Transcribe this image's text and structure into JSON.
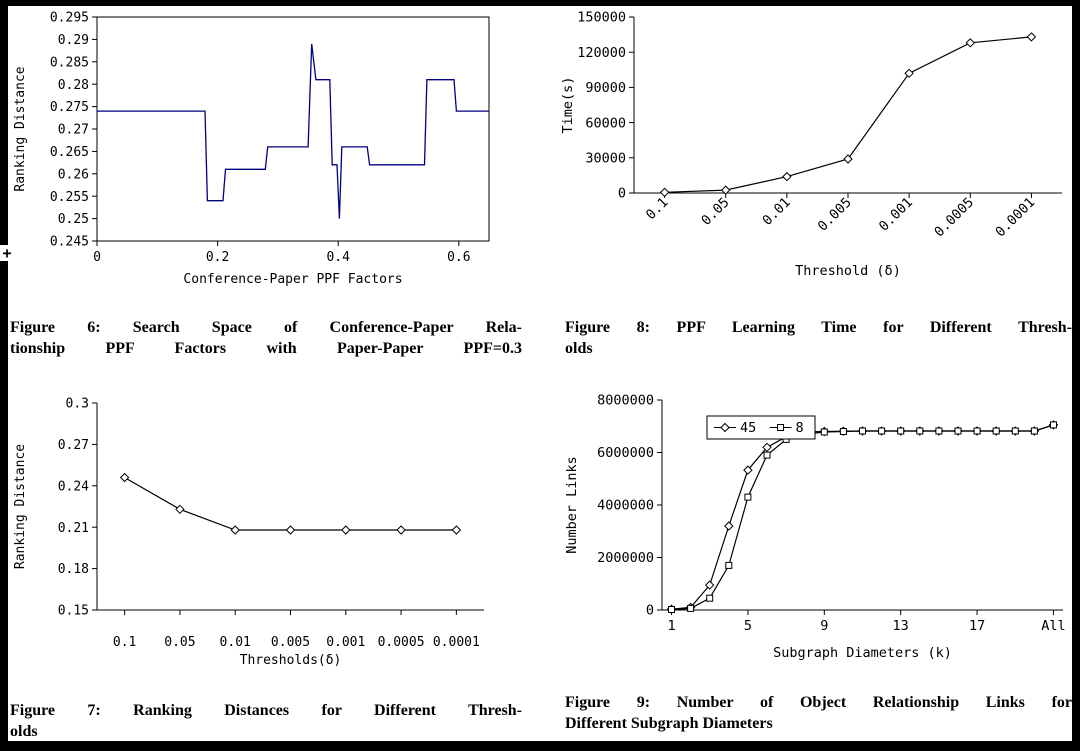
{
  "page": {
    "background": "#ffffff",
    "frame_color": "#000000",
    "cursor_artifact": "+"
  },
  "figures": {
    "fig6": {
      "caption_lines": [
        "Figure 6: Search Space of Conference-Paper Rela-",
        "tionship PPF Factors with Paper-Paper PPF=0.3"
      ]
    },
    "fig8": {
      "caption_lines": [
        "Figure 8: PPF Learning Time for Different Thresh-",
        "olds"
      ]
    },
    "fig7": {
      "caption_lines": [
        "Figure 7: Ranking Distances for Different Thresh-",
        "olds"
      ]
    },
    "fig9": {
      "caption_lines": [
        "Figure 9: Number of Object Relationship Links for",
        "Different Subgraph Diameters"
      ]
    }
  },
  "chart_data": [
    {
      "id": "fig6",
      "type": "line",
      "title": "",
      "xlabel": "Conference-Paper PPF Factors",
      "ylabel": "Ranking Distance",
      "xlim": [
        0,
        0.65
      ],
      "ylim": [
        0.245,
        0.295
      ],
      "xticks": [
        0,
        0.2,
        0.4,
        0.6
      ],
      "xtick_labels": [
        "0",
        "0.2",
        "0.4",
        "0.6"
      ],
      "yticks": [
        0.245,
        0.25,
        0.255,
        0.26,
        0.265,
        0.27,
        0.275,
        0.28,
        0.285,
        0.29,
        0.295
      ],
      "ytick_labels": [
        "0.245",
        "0.25",
        "0.255",
        "0.26",
        "0.265",
        "0.27",
        "0.275",
        "0.28",
        "0.285",
        "0.29",
        "0.295"
      ],
      "grid": false,
      "box": true,
      "line_color": "#000080",
      "points": [
        [
          0,
          0.274
        ],
        [
          0.179,
          0.274
        ],
        [
          0.183,
          0.254
        ],
        [
          0.209,
          0.254
        ],
        [
          0.213,
          0.261
        ],
        [
          0.279,
          0.261
        ],
        [
          0.283,
          0.266
        ],
        [
          0.35,
          0.266
        ],
        [
          0.356,
          0.289
        ],
        [
          0.363,
          0.281
        ],
        [
          0.386,
          0.281
        ],
        [
          0.39,
          0.262
        ],
        [
          0.398,
          0.262
        ],
        [
          0.402,
          0.25
        ],
        [
          0.406,
          0.266
        ],
        [
          0.448,
          0.266
        ],
        [
          0.452,
          0.262
        ],
        [
          0.543,
          0.262
        ],
        [
          0.547,
          0.281
        ],
        [
          0.592,
          0.281
        ],
        [
          0.596,
          0.274
        ],
        [
          0.65,
          0.274
        ]
      ]
    },
    {
      "id": "fig8",
      "type": "line",
      "title": "",
      "xlabel": "Threshold (δ)",
      "ylabel": "Time(s)",
      "categories": [
        "0.1",
        "0.05",
        "0.01",
        "0.005",
        "0.001",
        "0.0005",
        "0.0001"
      ],
      "values": [
        600,
        2500,
        14000,
        29000,
        102000,
        128000,
        133000
      ],
      "ylim": [
        0,
        150000
      ],
      "yticks": [
        0,
        30000,
        60000,
        90000,
        120000,
        150000
      ],
      "ytick_labels": [
        "0",
        "30000",
        "60000",
        "90000",
        "120000",
        "150000"
      ],
      "marker": "diamond",
      "line_color": "#000000",
      "x_label_rotation": -45,
      "grid": false,
      "box": false
    },
    {
      "id": "fig7",
      "type": "line",
      "title": "",
      "xlabel": "Thresholds(δ)",
      "ylabel": "Ranking Distance",
      "categories": [
        "0.1",
        "0.05",
        "0.01",
        "0.005",
        "0.001",
        "0.0005",
        "0.0001"
      ],
      "values": [
        0.246,
        0.223,
        0.208,
        0.208,
        0.208,
        0.208,
        0.208
      ],
      "ylim": [
        0.15,
        0.3
      ],
      "yticks": [
        0.15,
        0.18,
        0.21,
        0.24,
        0.27,
        0.3
      ],
      "ytick_labels": [
        "0.15",
        "0.18",
        "0.21",
        "0.24",
        "0.27",
        "0.3"
      ],
      "marker": "diamond",
      "line_color": "#000000",
      "grid": false,
      "box": false
    },
    {
      "id": "fig9",
      "type": "line",
      "title": "",
      "xlabel": "Subgraph Diameters (k)",
      "ylabel": "Number Links",
      "categories": [
        "1",
        "2",
        "3",
        "4",
        "5",
        "6",
        "7",
        "8",
        "9",
        "10",
        "11",
        "12",
        "13",
        "14",
        "15",
        "16",
        "17",
        "18",
        "19",
        "20",
        "All"
      ],
      "xtick_positions": [
        0,
        4,
        8,
        12,
        16,
        20
      ],
      "xtick_labels": [
        "1",
        "5",
        "9",
        "13",
        "17",
        "All"
      ],
      "series": [
        {
          "name": "45",
          "marker": "diamond",
          "values": [
            30000,
            100000,
            950000,
            3200000,
            5330000,
            6200000,
            6600000,
            6780000,
            6800000,
            6810000,
            6820000,
            6820000,
            6820000,
            6820000,
            6820000,
            6820000,
            6820000,
            6820000,
            6820000,
            6820000,
            7050000
          ]
        },
        {
          "name": "8",
          "marker": "square",
          "values": [
            20000,
            60000,
            450000,
            1700000,
            4300000,
            5900000,
            6500000,
            6700000,
            6780000,
            6800000,
            6820000,
            6820000,
            6820000,
            6820000,
            6820000,
            6820000,
            6820000,
            6820000,
            6820000,
            6820000,
            7050000
          ]
        }
      ],
      "ylim": [
        0,
        8000000
      ],
      "yticks": [
        0,
        2000000,
        4000000,
        6000000,
        8000000
      ],
      "ytick_labels": [
        "0",
        "2000000",
        "4000000",
        "6000000",
        "8000000"
      ],
      "legend": {
        "entries": [
          "45",
          "8"
        ],
        "position": "top-left-inside"
      },
      "line_color": "#000000",
      "grid": false,
      "box": false
    }
  ]
}
